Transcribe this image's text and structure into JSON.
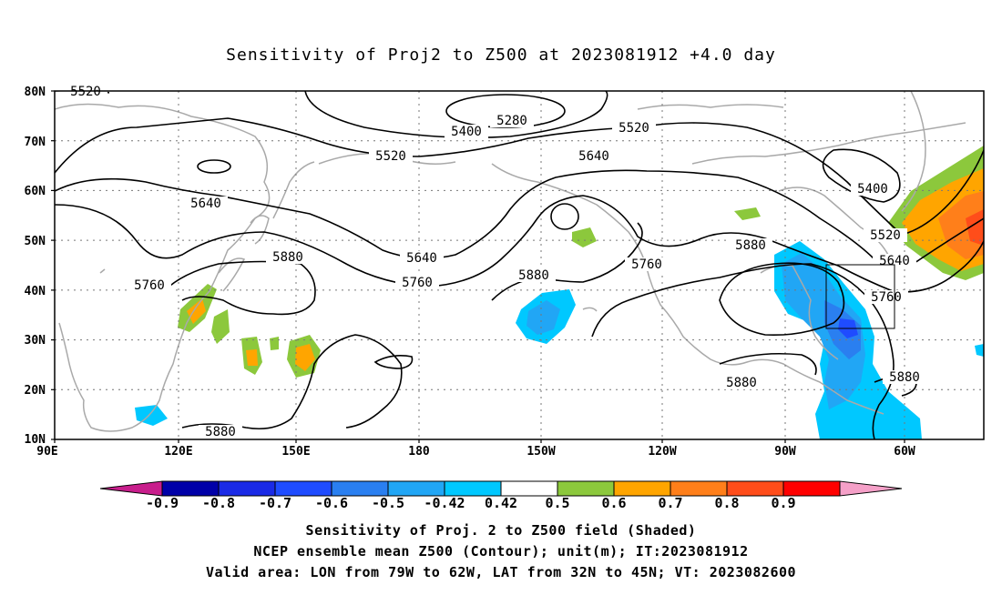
{
  "title": "Sensitivity of Proj2 to Z500 at 2023081912 +4.0 day",
  "lat_labels": [
    "80N",
    "70N",
    "60N",
    "50N",
    "40N",
    "30N",
    "20N",
    "10N"
  ],
  "lon_labels": [
    "90E",
    "120E",
    "150E",
    "180",
    "150W",
    "120W",
    "90W",
    "60W"
  ],
  "contour_labels": [
    "5280",
    "5400",
    "5520",
    "5520",
    "5640",
    "5640",
    "5640",
    "5760",
    "5760",
    "5760",
    "5880",
    "5880",
    "5880",
    "5880",
    "5880",
    "5400",
    "5520",
    "5640",
    "5760",
    "5520",
    "5880"
  ],
  "colorbar": {
    "tick_labels": [
      "-0.9",
      "-0.8",
      "-0.7",
      "-0.6",
      "-0.5",
      "-0.42",
      "0.42",
      "0.5",
      "0.6",
      "0.7",
      "0.8",
      "0.9"
    ],
    "colors": [
      "#0000a8",
      "#1a2ae6",
      "#1f4cff",
      "#2a7ff0",
      "#21a6f5",
      "#00c8ff",
      "#ffffff",
      "#8cc83c",
      "#ffa500",
      "#ff7f1a",
      "#ff4d1a",
      "#ff0000"
    ],
    "low_end_color": "#c81e8c",
    "high_end_color": "#f5a0c8"
  },
  "valid_box": {
    "lon_from": "79W",
    "lon_to": "62W",
    "lat_from": "32N",
    "lat_to": "45N"
  },
  "captions": [
    "Sensitivity of Proj. 2 to Z500 field (Shaded)",
    "NCEP ensemble mean Z500 (Contour); unit(m); IT:2023081912",
    "Valid area: LON from 79W to 62W, LAT from 32N to 45N; VT: 2023082600"
  ]
}
